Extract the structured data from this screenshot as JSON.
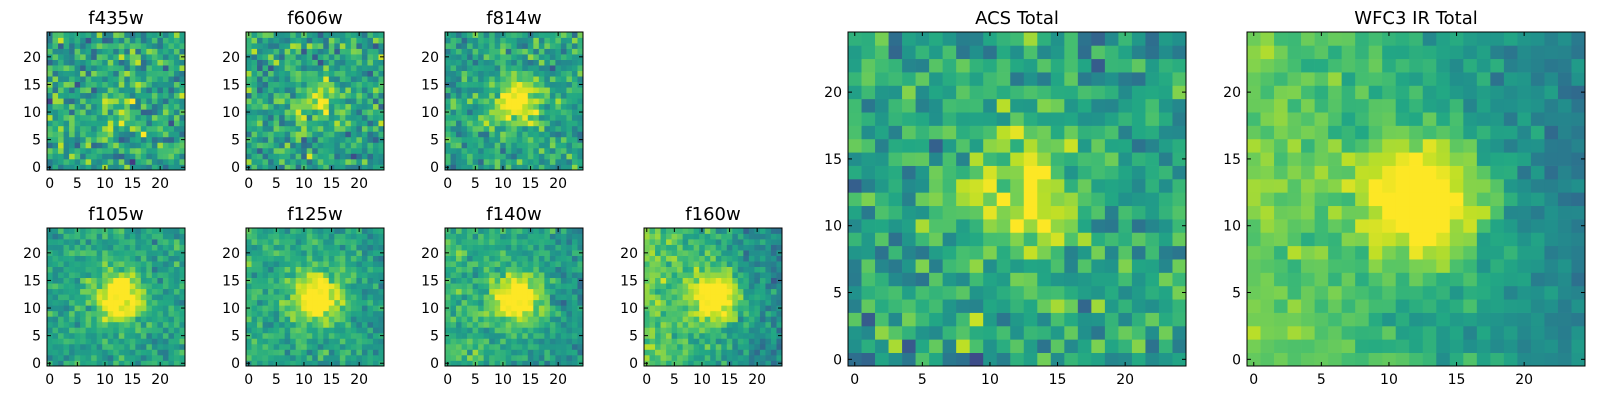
{
  "chart_data": [
    {
      "type": "heatmap",
      "title": "f435w",
      "grid_size": 25,
      "colormap": "viridis",
      "peak": 0.15,
      "noise": 0.55,
      "gradient": 0.0,
      "seed": 11,
      "xlim": [
        0,
        24
      ],
      "ylim": [
        0,
        24
      ],
      "xticks": [
        0,
        5,
        10,
        15,
        20
      ],
      "yticks": [
        0,
        5,
        10,
        15,
        20
      ],
      "xtick_labels": [
        "0",
        "5",
        "10",
        "15",
        "20"
      ],
      "ytick_labels": [
        "0",
        "5",
        "10",
        "15",
        "20"
      ]
    },
    {
      "type": "heatmap",
      "title": "f606w",
      "grid_size": 25,
      "colormap": "viridis",
      "peak": 0.25,
      "noise": 0.5,
      "gradient": 0.0,
      "seed": 23,
      "xlim": [
        0,
        24
      ],
      "ylim": [
        0,
        24
      ],
      "xticks": [
        0,
        5,
        10,
        15,
        20
      ],
      "yticks": [
        0,
        5,
        10,
        15,
        20
      ],
      "xtick_labels": [
        "0",
        "5",
        "10",
        "15",
        "20"
      ],
      "ytick_labels": [
        "0",
        "5",
        "10",
        "15",
        "20"
      ]
    },
    {
      "type": "heatmap",
      "title": "f814w",
      "grid_size": 25,
      "colormap": "viridis",
      "peak": 0.5,
      "noise": 0.42,
      "gradient": 0.0,
      "seed": 37,
      "xlim": [
        0,
        24
      ],
      "ylim": [
        0,
        24
      ],
      "xticks": [
        0,
        5,
        10,
        15,
        20
      ],
      "yticks": [
        0,
        5,
        10,
        15,
        20
      ],
      "xtick_labels": [
        "0",
        "5",
        "10",
        "15",
        "20"
      ],
      "ytick_labels": [
        "0",
        "5",
        "10",
        "15",
        "20"
      ]
    },
    {
      "type": "heatmap",
      "title": "f105w",
      "grid_size": 25,
      "colormap": "viridis",
      "peak": 0.6,
      "noise": 0.3,
      "gradient": 0.0,
      "seed": 41,
      "xlim": [
        0,
        24
      ],
      "ylim": [
        0,
        24
      ],
      "xticks": [
        0,
        5,
        10,
        15,
        20
      ],
      "yticks": [
        0,
        5,
        10,
        15,
        20
      ],
      "xtick_labels": [
        "0",
        "5",
        "10",
        "15",
        "20"
      ],
      "ytick_labels": [
        "0",
        "5",
        "10",
        "15",
        "20"
      ]
    },
    {
      "type": "heatmap",
      "title": "f125w",
      "grid_size": 25,
      "colormap": "viridis",
      "peak": 0.6,
      "noise": 0.3,
      "gradient": 0.1,
      "seed": 53,
      "xlim": [
        0,
        24
      ],
      "ylim": [
        0,
        24
      ],
      "xticks": [
        0,
        5,
        10,
        15,
        20
      ],
      "yticks": [
        0,
        5,
        10,
        15,
        20
      ],
      "xtick_labels": [
        "0",
        "5",
        "10",
        "15",
        "20"
      ],
      "ytick_labels": [
        "0",
        "5",
        "10",
        "15",
        "20"
      ]
    },
    {
      "type": "heatmap",
      "title": "f140w",
      "grid_size": 25,
      "colormap": "viridis",
      "peak": 0.6,
      "noise": 0.3,
      "gradient": 0.15,
      "seed": 67,
      "xlim": [
        0,
        24
      ],
      "ylim": [
        0,
        24
      ],
      "xticks": [
        0,
        5,
        10,
        15,
        20
      ],
      "yticks": [
        0,
        5,
        10,
        15,
        20
      ],
      "xtick_labels": [
        "0",
        "5",
        "10",
        "15",
        "20"
      ],
      "ytick_labels": [
        "0",
        "5",
        "10",
        "15",
        "20"
      ]
    },
    {
      "type": "heatmap",
      "title": "f160w",
      "grid_size": 25,
      "colormap": "viridis",
      "peak": 0.6,
      "noise": 0.3,
      "gradient": 0.3,
      "seed": 79,
      "xlim": [
        0,
        24
      ],
      "ylim": [
        0,
        24
      ],
      "xticks": [
        0,
        5,
        10,
        15,
        20
      ],
      "yticks": [
        0,
        5,
        10,
        15,
        20
      ],
      "xtick_labels": [
        "0",
        "5",
        "10",
        "15",
        "20"
      ],
      "ytick_labels": [
        "0",
        "5",
        "10",
        "15",
        "20"
      ]
    },
    {
      "type": "heatmap",
      "title": "ACS Total",
      "grid_size": 25,
      "colormap": "viridis",
      "peak": 0.4,
      "noise": 0.45,
      "gradient": 0.0,
      "seed": 97,
      "xlim": [
        0,
        24
      ],
      "ylim": [
        0,
        24
      ],
      "xticks": [
        0,
        5,
        10,
        15,
        20
      ],
      "yticks": [
        0,
        5,
        10,
        15,
        20
      ],
      "xtick_labels": [
        "0",
        "5",
        "10",
        "15",
        "20"
      ],
      "ytick_labels": [
        "0",
        "5",
        "10",
        "15",
        "20"
      ]
    },
    {
      "type": "heatmap",
      "title": "WFC3 IR Total",
      "grid_size": 25,
      "colormap": "viridis",
      "peak": 0.65,
      "noise": 0.22,
      "gradient": 0.35,
      "seed": 103,
      "xlim": [
        0,
        24
      ],
      "ylim": [
        0,
        24
      ],
      "xticks": [
        0,
        5,
        10,
        15,
        20
      ],
      "yticks": [
        0,
        5,
        10,
        15,
        20
      ],
      "xtick_labels": [
        "0",
        "5",
        "10",
        "15",
        "20"
      ],
      "ytick_labels": [
        "0",
        "5",
        "10",
        "15",
        "20"
      ]
    }
  ]
}
